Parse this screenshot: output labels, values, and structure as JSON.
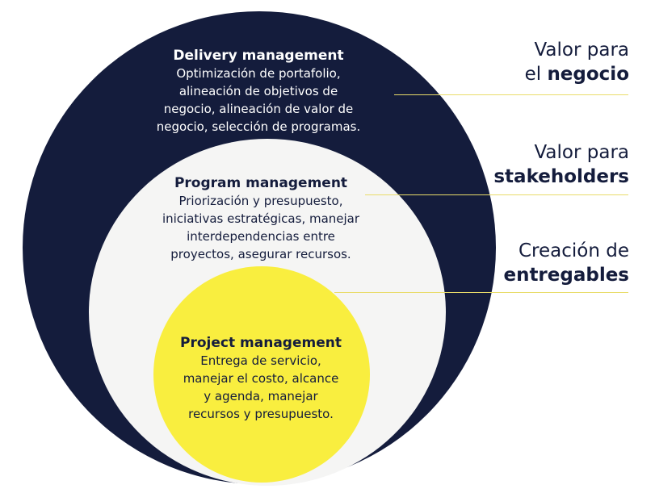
{
  "levels": {
    "delivery": {
      "title": "Delivery management",
      "body": "Optimización de portafolio,\nalineación de objetivos de\nnegocio, alineación de valor de\nnegocio, selección de programas."
    },
    "program": {
      "title": "Program management",
      "body": "Priorización y presupuesto,\niniciativas estratégicas, manejar\ninterdependencias entre\nproyectos, asegurar recursos."
    },
    "project": {
      "title": "Project management",
      "body": "Entrega de servicio,\nmanejar el costo, alcance\ny agenda, manejar\nrecursos y presupuesto."
    }
  },
  "labels": {
    "business": {
      "line1": "Valor para",
      "prefix": "el ",
      "strong": "negocio"
    },
    "stakeholders": {
      "line1": "Valor para",
      "strong": "stakeholders"
    },
    "deliverables": {
      "line1": "Creación de",
      "strong": "entregables"
    }
  },
  "colors": {
    "outer_circle": "#141c3c",
    "middle_circle": "#f5f5f4",
    "inner_circle": "#f9ee3f",
    "connector_line": "#e9dc6a"
  }
}
